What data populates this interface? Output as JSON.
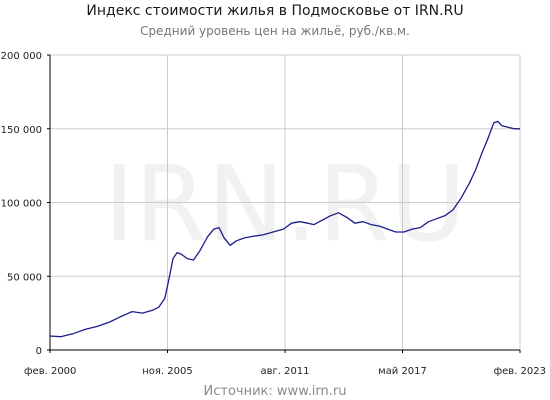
{
  "chart_data": {
    "type": "line",
    "title": "Индекс стоимости жилья в Подмосковье от IRN.RU",
    "subtitle": "Средний уровень цен на жильё, руб./кв.м.",
    "source": "Источник: www.irn.ru",
    "watermark": "IRN.RU",
    "ylim": [
      0,
      200000
    ],
    "y_ticks": [
      {
        "value": 0,
        "label": "0"
      },
      {
        "value": 50000,
        "label": "50 000"
      },
      {
        "value": 100000,
        "label": "100 000"
      },
      {
        "value": 150000,
        "label": "150 000"
      },
      {
        "value": 200000,
        "label": "200 000"
      }
    ],
    "x_ticks": [
      {
        "value": 2000.08,
        "label": "фев. 2000"
      },
      {
        "value": 2005.83,
        "label": "ноя. 2005"
      },
      {
        "value": 2011.58,
        "label": "авг. 2011"
      },
      {
        "value": 2017.33,
        "label": "май 2017"
      },
      {
        "value": 2023.08,
        "label": "фев. 2023"
      }
    ],
    "grid": true,
    "colors": {
      "line": "#1c1c8c",
      "grid": "#cccccc",
      "axis": "#000000"
    },
    "series": [
      {
        "x": [
          2000.08,
          2000.6,
          2001.2,
          2001.8,
          2002.4,
          2003.0,
          2003.6,
          2004.1,
          2004.6,
          2005.1,
          2005.4,
          2005.7,
          2005.9,
          2006.1,
          2006.3,
          2006.5,
          2006.8,
          2007.1,
          2007.4,
          2007.8,
          2008.1,
          2008.35,
          2008.6,
          2008.9,
          2009.2,
          2009.6,
          2010.0,
          2010.5,
          2011.0,
          2011.5,
          2011.9,
          2012.3,
          2012.7,
          2013.0,
          2013.4,
          2013.8,
          2014.2,
          2014.6,
          2015.0,
          2015.4,
          2015.8,
          2016.2,
          2016.6,
          2017.0,
          2017.4,
          2017.8,
          2018.2,
          2018.6,
          2019.0,
          2019.4,
          2019.8,
          2020.2,
          2020.6,
          2020.9,
          2021.2,
          2021.5,
          2021.8,
          2022.0,
          2022.2,
          2022.5,
          2022.8,
          2023.08
        ],
        "values": [
          9500,
          9000,
          11000,
          14000,
          16000,
          19000,
          23000,
          26000,
          25000,
          27000,
          29000,
          35000,
          48000,
          62000,
          66000,
          65000,
          62000,
          61000,
          67000,
          77000,
          82000,
          83000,
          76000,
          71000,
          74000,
          76000,
          77000,
          78000,
          80000,
          82000,
          86000,
          87000,
          86000,
          85000,
          88000,
          91000,
          93000,
          90000,
          86000,
          87000,
          85000,
          84000,
          82000,
          80000,
          80000,
          82000,
          83000,
          87000,
          89000,
          91000,
          95000,
          103000,
          113000,
          122000,
          133000,
          143000,
          154000,
          155000,
          152000,
          151000,
          150000,
          150000
        ]
      }
    ]
  }
}
